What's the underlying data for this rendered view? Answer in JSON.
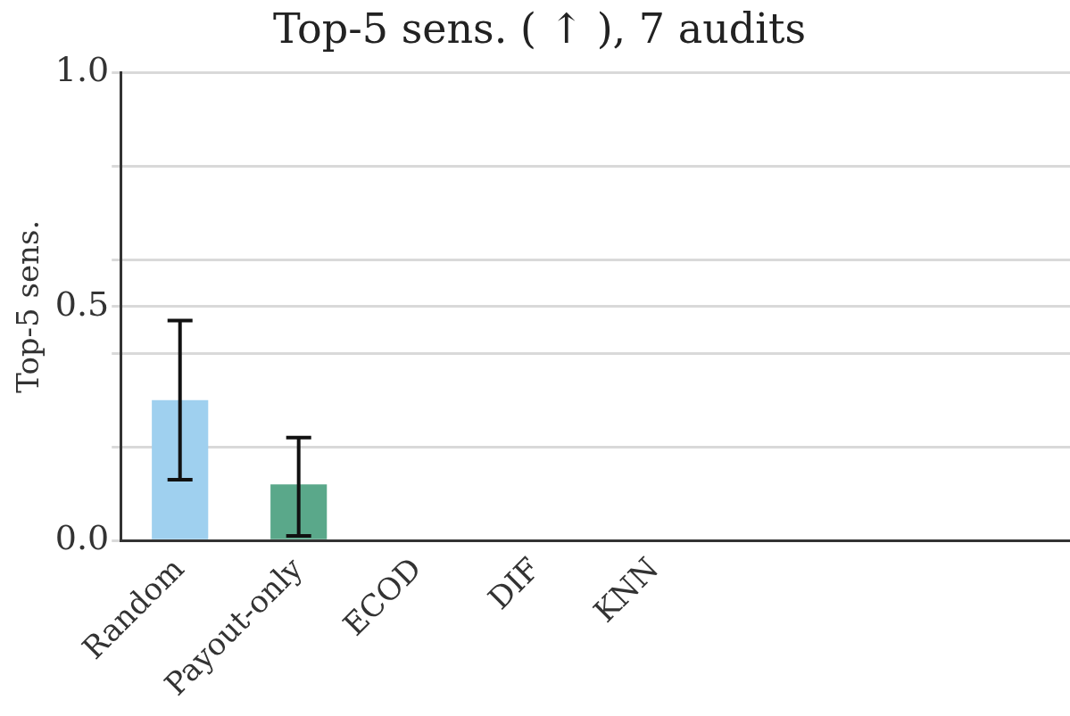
{
  "chart_data": {
    "type": "bar",
    "title": "Top-5 sens. ( ↑ ), 7 audits",
    "ylabel": "Top-5 sens.",
    "categories": [
      "Random",
      "Payout-only",
      "ECOD",
      "DIF",
      "KNN",
      null,
      null,
      null
    ],
    "values": [
      0.3,
      0.12,
      0,
      0,
      0,
      0,
      0,
      0
    ],
    "errors": [
      [
        0.13,
        0.47
      ],
      [
        0.01,
        0.22
      ],
      null,
      null,
      null,
      null,
      null,
      null
    ],
    "colors": [
      "#9fd0ef",
      "#5aa88a",
      "#8e6fb0",
      "#d46a6a",
      "#7a8fc4",
      "#6aa86a",
      "#d65f5f",
      "#6f7fbf"
    ],
    "ylim": [
      0,
      1
    ],
    "yticks": [
      {
        "value": 0,
        "label": "0.0"
      },
      {
        "value": 0.2,
        "label": null
      },
      {
        "value": 0.4,
        "label": null
      },
      0.5,
      {
        "value": 0.6,
        "label": null
      },
      {
        "value": 0.8,
        "label": null
      },
      {
        "value": 1,
        "label": "1.0"
      }
    ],
    "grid": "y",
    "legend": false
  }
}
